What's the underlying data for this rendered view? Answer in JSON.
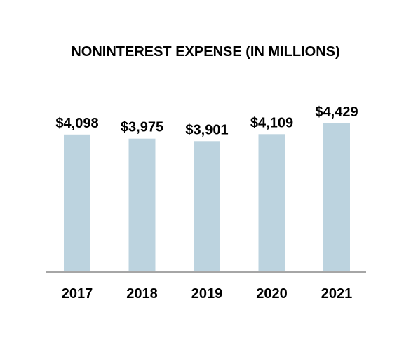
{
  "chart_data": {
    "type": "bar",
    "title": "NONINTEREST EXPENSE (IN MILLIONS)",
    "categories": [
      "2017",
      "2018",
      "2019",
      "2020",
      "2021"
    ],
    "values": [
      4098,
      3975,
      3901,
      4109,
      4429
    ],
    "value_labels": [
      "$4,098",
      "$3,975",
      "$3,901",
      "$4,109",
      "$4,429"
    ],
    "xlabel": "",
    "ylabel": "",
    "ylim": [
      0,
      4429
    ],
    "grid": false,
    "legend": "none",
    "colors": {
      "bar": "#bcd3df",
      "axis": "#a6a6a6",
      "text": "#000000"
    }
  }
}
